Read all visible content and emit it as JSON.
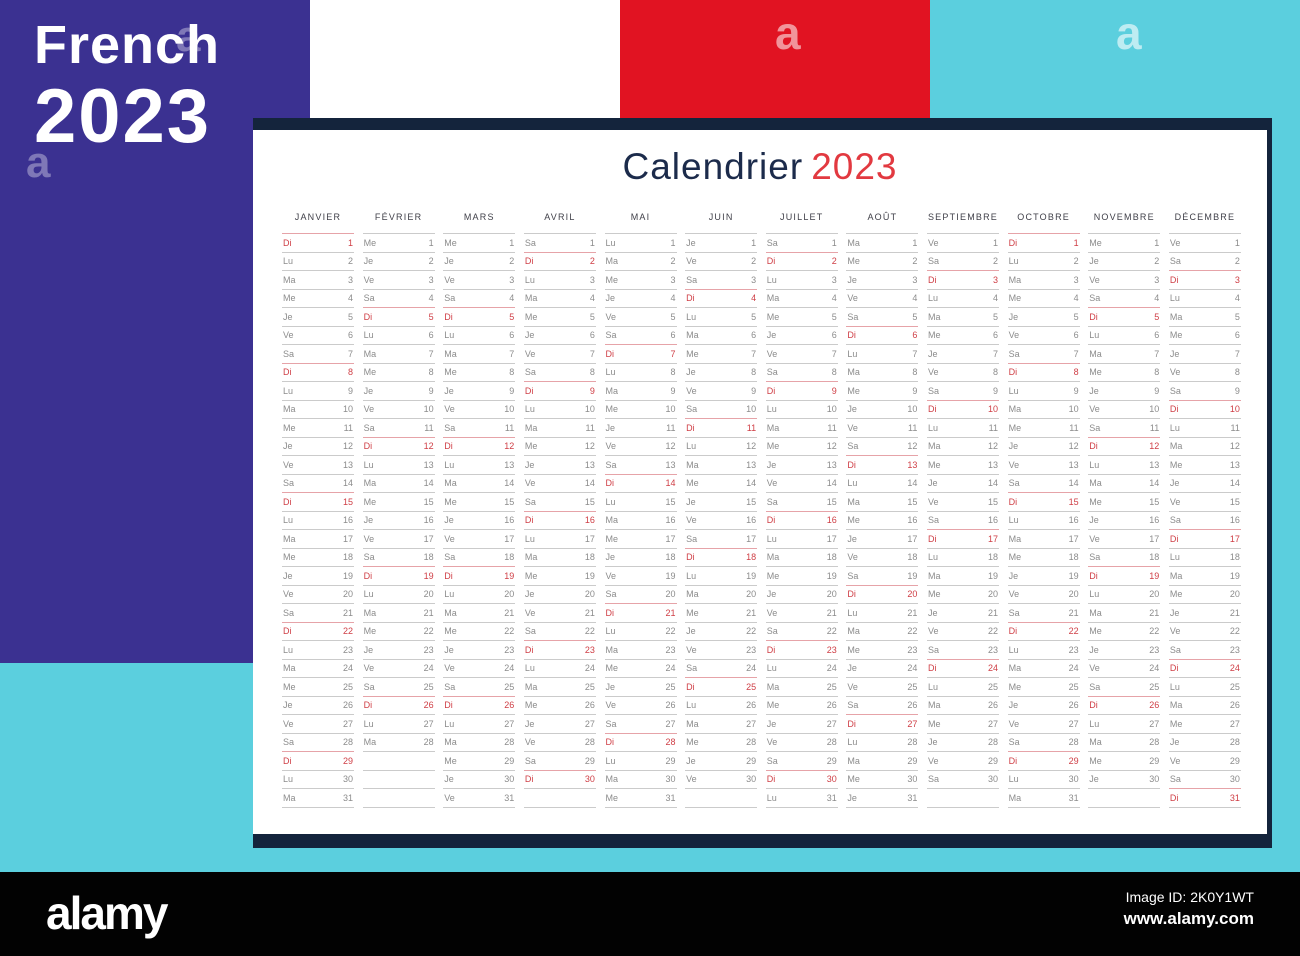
{
  "poster": {
    "line1": "French",
    "line2": "2023"
  },
  "title": {
    "text": "Calendrier",
    "year": "2023"
  },
  "sunday_abbr": "Di",
  "months": [
    {
      "name": "JANVIER",
      "days": [
        [
          "Di",
          1
        ],
        [
          "Lu",
          2
        ],
        [
          "Ma",
          3
        ],
        [
          "Me",
          4
        ],
        [
          "Je",
          5
        ],
        [
          "Ve",
          6
        ],
        [
          "Sa",
          7
        ],
        [
          "Di",
          8
        ],
        [
          "Lu",
          9
        ],
        [
          "Ma",
          10
        ],
        [
          "Me",
          11
        ],
        [
          "Je",
          12
        ],
        [
          "Ve",
          13
        ],
        [
          "Sa",
          14
        ],
        [
          "Di",
          15
        ],
        [
          "Lu",
          16
        ],
        [
          "Ma",
          17
        ],
        [
          "Me",
          18
        ],
        [
          "Je",
          19
        ],
        [
          "Ve",
          20
        ],
        [
          "Sa",
          21
        ],
        [
          "Di",
          22
        ],
        [
          "Lu",
          23
        ],
        [
          "Ma",
          24
        ],
        [
          "Me",
          25
        ],
        [
          "Je",
          26
        ],
        [
          "Ve",
          27
        ],
        [
          "Sa",
          28
        ],
        [
          "Di",
          29
        ],
        [
          "Lu",
          30
        ],
        [
          "Ma",
          31
        ]
      ]
    },
    {
      "name": "FÉVRIER",
      "days": [
        [
          "Me",
          1
        ],
        [
          "Je",
          2
        ],
        [
          "Ve",
          3
        ],
        [
          "Sa",
          4
        ],
        [
          "Di",
          5
        ],
        [
          "Lu",
          6
        ],
        [
          "Ma",
          7
        ],
        [
          "Me",
          8
        ],
        [
          "Je",
          9
        ],
        [
          "Ve",
          10
        ],
        [
          "Sa",
          11
        ],
        [
          "Di",
          12
        ],
        [
          "Lu",
          13
        ],
        [
          "Ma",
          14
        ],
        [
          "Me",
          15
        ],
        [
          "Je",
          16
        ],
        [
          "Ve",
          17
        ],
        [
          "Sa",
          18
        ],
        [
          "Di",
          19
        ],
        [
          "Lu",
          20
        ],
        [
          "Ma",
          21
        ],
        [
          "Me",
          22
        ],
        [
          "Je",
          23
        ],
        [
          "Ve",
          24
        ],
        [
          "Sa",
          25
        ],
        [
          "Di",
          26
        ],
        [
          "Lu",
          27
        ],
        [
          "Ma",
          28
        ]
      ]
    },
    {
      "name": "MARS",
      "days": [
        [
          "Me",
          1
        ],
        [
          "Je",
          2
        ],
        [
          "Ve",
          3
        ],
        [
          "Sa",
          4
        ],
        [
          "Di",
          5
        ],
        [
          "Lu",
          6
        ],
        [
          "Ma",
          7
        ],
        [
          "Me",
          8
        ],
        [
          "Je",
          9
        ],
        [
          "Ve",
          10
        ],
        [
          "Sa",
          11
        ],
        [
          "Di",
          12
        ],
        [
          "Lu",
          13
        ],
        [
          "Ma",
          14
        ],
        [
          "Me",
          15
        ],
        [
          "Je",
          16
        ],
        [
          "Ve",
          17
        ],
        [
          "Sa",
          18
        ],
        [
          "Di",
          19
        ],
        [
          "Lu",
          20
        ],
        [
          "Ma",
          21
        ],
        [
          "Me",
          22
        ],
        [
          "Je",
          23
        ],
        [
          "Ve",
          24
        ],
        [
          "Sa",
          25
        ],
        [
          "Di",
          26
        ],
        [
          "Lu",
          27
        ],
        [
          "Ma",
          28
        ],
        [
          "Me",
          29
        ],
        [
          "Je",
          30
        ],
        [
          "Ve",
          31
        ]
      ]
    },
    {
      "name": "AVRIL",
      "days": [
        [
          "Sa",
          1
        ],
        [
          "Di",
          2
        ],
        [
          "Lu",
          3
        ],
        [
          "Ma",
          4
        ],
        [
          "Me",
          5
        ],
        [
          "Je",
          6
        ],
        [
          "Ve",
          7
        ],
        [
          "Sa",
          8
        ],
        [
          "Di",
          9
        ],
        [
          "Lu",
          10
        ],
        [
          "Ma",
          11
        ],
        [
          "Me",
          12
        ],
        [
          "Je",
          13
        ],
        [
          "Ve",
          14
        ],
        [
          "Sa",
          15
        ],
        [
          "Di",
          16
        ],
        [
          "Lu",
          17
        ],
        [
          "Ma",
          18
        ],
        [
          "Me",
          19
        ],
        [
          "Je",
          20
        ],
        [
          "Ve",
          21
        ],
        [
          "Sa",
          22
        ],
        [
          "Di",
          23
        ],
        [
          "Lu",
          24
        ],
        [
          "Ma",
          25
        ],
        [
          "Me",
          26
        ],
        [
          "Je",
          27
        ],
        [
          "Ve",
          28
        ],
        [
          "Sa",
          29
        ],
        [
          "Di",
          30
        ]
      ]
    },
    {
      "name": "MAI",
      "days": [
        [
          "Lu",
          1
        ],
        [
          "Ma",
          2
        ],
        [
          "Me",
          3
        ],
        [
          "Je",
          4
        ],
        [
          "Ve",
          5
        ],
        [
          "Sa",
          6
        ],
        [
          "Di",
          7
        ],
        [
          "Lu",
          8
        ],
        [
          "Ma",
          9
        ],
        [
          "Me",
          10
        ],
        [
          "Je",
          11
        ],
        [
          "Ve",
          12
        ],
        [
          "Sa",
          13
        ],
        [
          "Di",
          14
        ],
        [
          "Lu",
          15
        ],
        [
          "Ma",
          16
        ],
        [
          "Me",
          17
        ],
        [
          "Je",
          18
        ],
        [
          "Ve",
          19
        ],
        [
          "Sa",
          20
        ],
        [
          "Di",
          21
        ],
        [
          "Lu",
          22
        ],
        [
          "Ma",
          23
        ],
        [
          "Me",
          24
        ],
        [
          "Je",
          25
        ],
        [
          "Ve",
          26
        ],
        [
          "Sa",
          27
        ],
        [
          "Di",
          28
        ],
        [
          "Lu",
          29
        ],
        [
          "Ma",
          30
        ],
        [
          "Me",
          31
        ]
      ]
    },
    {
      "name": "JUIN",
      "days": [
        [
          "Je",
          1
        ],
        [
          "Ve",
          2
        ],
        [
          "Sa",
          3
        ],
        [
          "Di",
          4
        ],
        [
          "Lu",
          5
        ],
        [
          "Ma",
          6
        ],
        [
          "Me",
          7
        ],
        [
          "Je",
          8
        ],
        [
          "Ve",
          9
        ],
        [
          "Sa",
          10
        ],
        [
          "Di",
          11
        ],
        [
          "Lu",
          12
        ],
        [
          "Ma",
          13
        ],
        [
          "Me",
          14
        ],
        [
          "Je",
          15
        ],
        [
          "Ve",
          16
        ],
        [
          "Sa",
          17
        ],
        [
          "Di",
          18
        ],
        [
          "Lu",
          19
        ],
        [
          "Ma",
          20
        ],
        [
          "Me",
          21
        ],
        [
          "Je",
          22
        ],
        [
          "Ve",
          23
        ],
        [
          "Sa",
          24
        ],
        [
          "Di",
          25
        ],
        [
          "Lu",
          26
        ],
        [
          "Ma",
          27
        ],
        [
          "Me",
          28
        ],
        [
          "Je",
          29
        ],
        [
          "Ve",
          30
        ]
      ]
    },
    {
      "name": "JUILLET",
      "days": [
        [
          "Sa",
          1
        ],
        [
          "Di",
          2
        ],
        [
          "Lu",
          3
        ],
        [
          "Ma",
          4
        ],
        [
          "Me",
          5
        ],
        [
          "Je",
          6
        ],
        [
          "Ve",
          7
        ],
        [
          "Sa",
          8
        ],
        [
          "Di",
          9
        ],
        [
          "Lu",
          10
        ],
        [
          "Ma",
          11
        ],
        [
          "Me",
          12
        ],
        [
          "Je",
          13
        ],
        [
          "Ve",
          14
        ],
        [
          "Sa",
          15
        ],
        [
          "Di",
          16
        ],
        [
          "Lu",
          17
        ],
        [
          "Ma",
          18
        ],
        [
          "Me",
          19
        ],
        [
          "Je",
          20
        ],
        [
          "Ve",
          21
        ],
        [
          "Sa",
          22
        ],
        [
          "Di",
          23
        ],
        [
          "Lu",
          24
        ],
        [
          "Ma",
          25
        ],
        [
          "Me",
          26
        ],
        [
          "Je",
          27
        ],
        [
          "Ve",
          28
        ],
        [
          "Sa",
          29
        ],
        [
          "Di",
          30
        ],
        [
          "Lu",
          31
        ]
      ]
    },
    {
      "name": "AOÛT",
      "days": [
        [
          "Ma",
          1
        ],
        [
          "Me",
          2
        ],
        [
          "Je",
          3
        ],
        [
          "Ve",
          4
        ],
        [
          "Sa",
          5
        ],
        [
          "Di",
          6
        ],
        [
          "Lu",
          7
        ],
        [
          "Ma",
          8
        ],
        [
          "Me",
          9
        ],
        [
          "Je",
          10
        ],
        [
          "Ve",
          11
        ],
        [
          "Sa",
          12
        ],
        [
          "Di",
          13
        ],
        [
          "Lu",
          14
        ],
        [
          "Ma",
          15
        ],
        [
          "Me",
          16
        ],
        [
          "Je",
          17
        ],
        [
          "Ve",
          18
        ],
        [
          "Sa",
          19
        ],
        [
          "Di",
          20
        ],
        [
          "Lu",
          21
        ],
        [
          "Ma",
          22
        ],
        [
          "Me",
          23
        ],
        [
          "Je",
          24
        ],
        [
          "Ve",
          25
        ],
        [
          "Sa",
          26
        ],
        [
          "Di",
          27
        ],
        [
          "Lu",
          28
        ],
        [
          "Ma",
          29
        ],
        [
          "Me",
          30
        ],
        [
          "Je",
          31
        ]
      ]
    },
    {
      "name": "SEPTIEMBRE",
      "days": [
        [
          "Ve",
          1
        ],
        [
          "Sa",
          2
        ],
        [
          "Di",
          3
        ],
        [
          "Lu",
          4
        ],
        [
          "Ma",
          5
        ],
        [
          "Me",
          6
        ],
        [
          "Je",
          7
        ],
        [
          "Ve",
          8
        ],
        [
          "Sa",
          9
        ],
        [
          "Di",
          10
        ],
        [
          "Lu",
          11
        ],
        [
          "Ma",
          12
        ],
        [
          "Me",
          13
        ],
        [
          "Je",
          14
        ],
        [
          "Ve",
          15
        ],
        [
          "Sa",
          16
        ],
        [
          "Di",
          17
        ],
        [
          "Lu",
          18
        ],
        [
          "Ma",
          19
        ],
        [
          "Me",
          20
        ],
        [
          "Je",
          21
        ],
        [
          "Ve",
          22
        ],
        [
          "Sa",
          23
        ],
        [
          "Di",
          24
        ],
        [
          "Lu",
          25
        ],
        [
          "Ma",
          26
        ],
        [
          "Me",
          27
        ],
        [
          "Je",
          28
        ],
        [
          "Ve",
          29
        ],
        [
          "Sa",
          30
        ]
      ]
    },
    {
      "name": "OCTOBRE",
      "days": [
        [
          "Di",
          1
        ],
        [
          "Lu",
          2
        ],
        [
          "Ma",
          3
        ],
        [
          "Me",
          4
        ],
        [
          "Je",
          5
        ],
        [
          "Ve",
          6
        ],
        [
          "Sa",
          7
        ],
        [
          "Di",
          8
        ],
        [
          "Lu",
          9
        ],
        [
          "Ma",
          10
        ],
        [
          "Me",
          11
        ],
        [
          "Je",
          12
        ],
        [
          "Ve",
          13
        ],
        [
          "Sa",
          14
        ],
        [
          "Di",
          15
        ],
        [
          "Lu",
          16
        ],
        [
          "Ma",
          17
        ],
        [
          "Me",
          18
        ],
        [
          "Je",
          19
        ],
        [
          "Ve",
          20
        ],
        [
          "Sa",
          21
        ],
        [
          "Di",
          22
        ],
        [
          "Lu",
          23
        ],
        [
          "Ma",
          24
        ],
        [
          "Me",
          25
        ],
        [
          "Je",
          26
        ],
        [
          "Ve",
          27
        ],
        [
          "Sa",
          28
        ],
        [
          "Di",
          29
        ],
        [
          "Lu",
          30
        ],
        [
          "Ma",
          31
        ]
      ]
    },
    {
      "name": "NOVEMBRE",
      "days": [
        [
          "Me",
          1
        ],
        [
          "Je",
          2
        ],
        [
          "Ve",
          3
        ],
        [
          "Sa",
          4
        ],
        [
          "Di",
          5
        ],
        [
          "Lu",
          6
        ],
        [
          "Ma",
          7
        ],
        [
          "Me",
          8
        ],
        [
          "Je",
          9
        ],
        [
          "Ve",
          10
        ],
        [
          "Sa",
          11
        ],
        [
          "Di",
          12
        ],
        [
          "Lu",
          13
        ],
        [
          "Ma",
          14
        ],
        [
          "Me",
          15
        ],
        [
          "Je",
          16
        ],
        [
          "Ve",
          17
        ],
        [
          "Sa",
          18
        ],
        [
          "Di",
          19
        ],
        [
          "Lu",
          20
        ],
        [
          "Ma",
          21
        ],
        [
          "Me",
          22
        ],
        [
          "Je",
          23
        ],
        [
          "Ve",
          24
        ],
        [
          "Sa",
          25
        ],
        [
          "Di",
          26
        ],
        [
          "Lu",
          27
        ],
        [
          "Ma",
          28
        ],
        [
          "Me",
          29
        ],
        [
          "Je",
          30
        ]
      ]
    },
    {
      "name": "DÉCEMBRE",
      "days": [
        [
          "Ve",
          1
        ],
        [
          "Sa",
          2
        ],
        [
          "Di",
          3
        ],
        [
          "Lu",
          4
        ],
        [
          "Ma",
          5
        ],
        [
          "Me",
          6
        ],
        [
          "Je",
          7
        ],
        [
          "Ve",
          8
        ],
        [
          "Sa",
          9
        ],
        [
          "Di",
          10
        ],
        [
          "Lu",
          11
        ],
        [
          "Ma",
          12
        ],
        [
          "Me",
          13
        ],
        [
          "Je",
          14
        ],
        [
          "Ve",
          15
        ],
        [
          "Sa",
          16
        ],
        [
          "Di",
          17
        ],
        [
          "Lu",
          18
        ],
        [
          "Ma",
          19
        ],
        [
          "Me",
          20
        ],
        [
          "Je",
          21
        ],
        [
          "Ve",
          22
        ],
        [
          "Sa",
          23
        ],
        [
          "Di",
          24
        ],
        [
          "Lu",
          25
        ],
        [
          "Ma",
          26
        ],
        [
          "Me",
          27
        ],
        [
          "Je",
          28
        ],
        [
          "Ve",
          29
        ],
        [
          "Sa",
          30
        ],
        [
          "Di",
          31
        ]
      ]
    }
  ],
  "watermark": {
    "letter": "a"
  },
  "footer": {
    "logo": "alamy",
    "image_id": "Image ID: 2K0Y1WT",
    "url": "www.alamy.com"
  },
  "colors": {
    "purple": "#3b3191",
    "flag_red": "#e11322",
    "cyan": "#5bcfde",
    "navy_bar": "#14243c",
    "title_navy": "#1c2b4b",
    "title_red": "#e23940",
    "sunday_red": "#cf3e45",
    "day_gray": "#8c8c8c",
    "line_gray": "#cbcbcb",
    "sunday_line": "#e6a3a8",
    "footer_black": "#020202"
  }
}
